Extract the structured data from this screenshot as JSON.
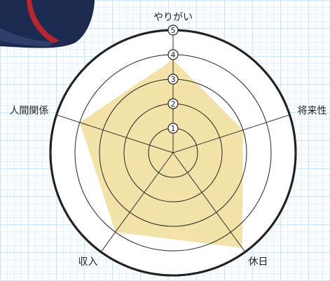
{
  "chart_data": {
    "type": "radar",
    "categories": [
      "やりがい",
      "将来性",
      "休日",
      "収入",
      "人間関係"
    ],
    "values": [
      3.8,
      3,
      4.8,
      4,
      4
    ],
    "color": "#f2e0a0",
    "ylim": [
      0,
      5
    ],
    "yticks": [
      1,
      2,
      3,
      4,
      5
    ]
  }
}
